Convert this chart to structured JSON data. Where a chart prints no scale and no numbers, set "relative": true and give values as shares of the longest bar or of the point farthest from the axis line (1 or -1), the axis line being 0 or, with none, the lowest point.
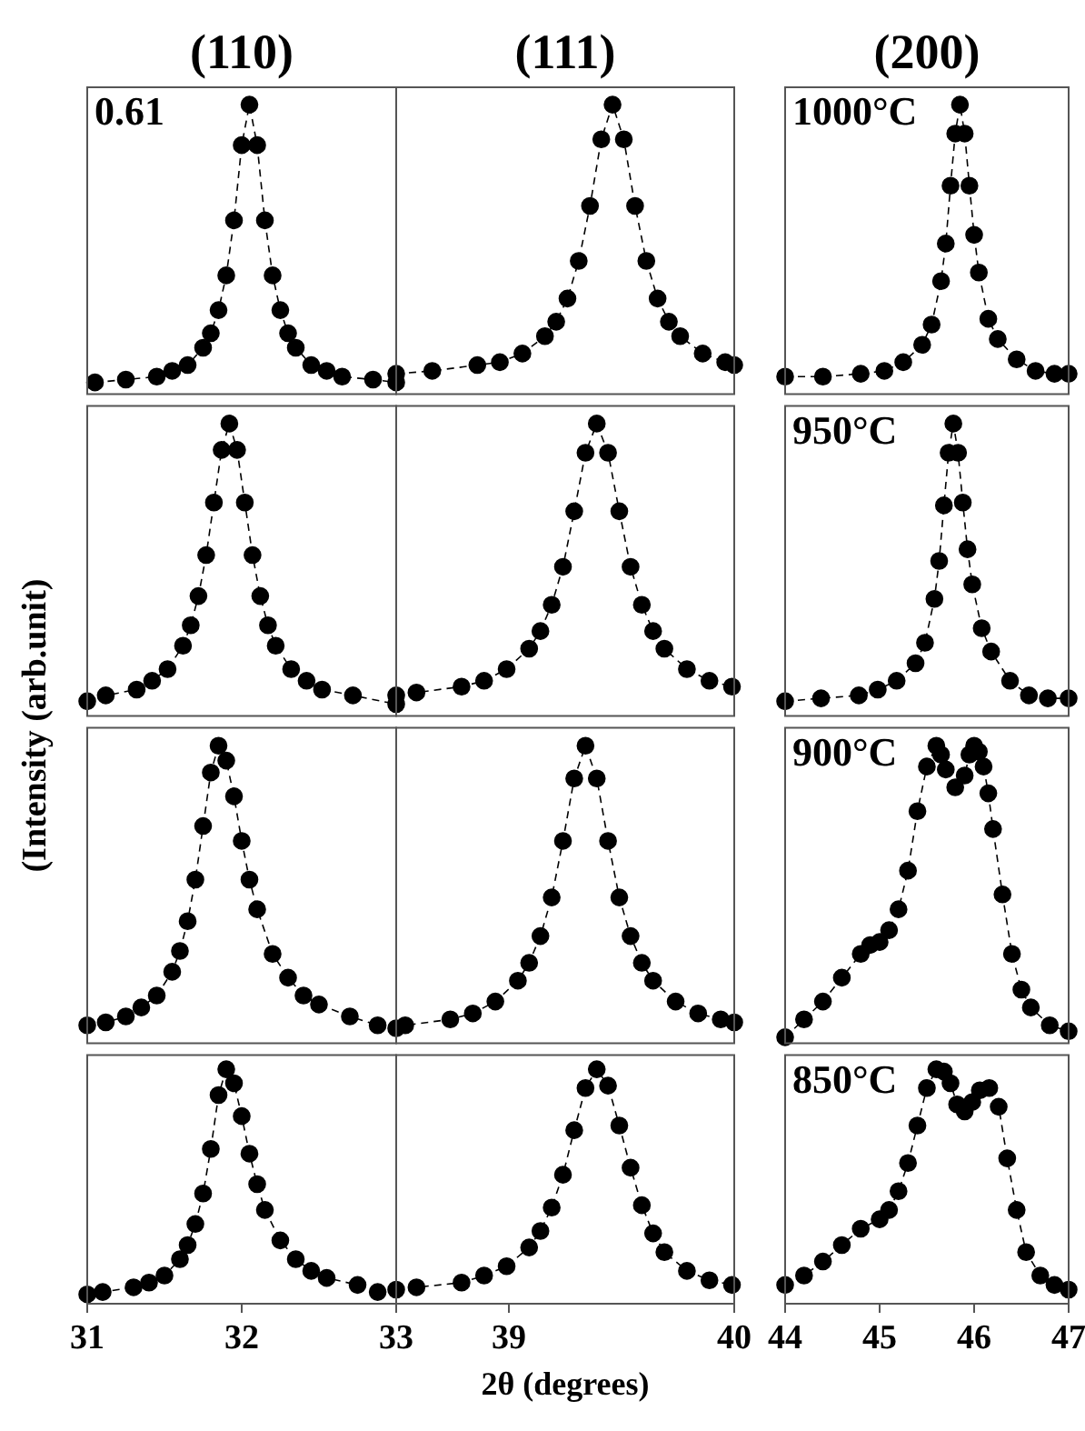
{
  "chart_data": [
    {
      "type": "line",
      "title": "(110)",
      "x": [
        31.05,
        31.25,
        31.45,
        31.55,
        31.65,
        31.75,
        31.8,
        31.85,
        31.9,
        31.95,
        32.0,
        32.05,
        32.1,
        32.15,
        32.2,
        32.25,
        32.3,
        32.35,
        32.45,
        32.55,
        32.65,
        32.85,
        33.0
      ],
      "values": [
        0.04,
        0.05,
        0.06,
        0.08,
        0.1,
        0.16,
        0.21,
        0.29,
        0.41,
        0.6,
        0.86,
        1,
        0.86,
        0.6,
        0.41,
        0.29,
        0.21,
        0.16,
        0.1,
        0.08,
        0.06,
        0.05,
        0.04
      ],
      "color": "#000000",
      "relative": true,
      "xlim": [
        31,
        33
      ],
      "xticks": [
        31,
        32,
        33
      ],
      "tick_labels": false,
      "marker": "circle",
      "line_style": "dashed",
      "annotations": [
        "0.61"
      ]
    },
    {
      "type": "line",
      "title": "(111)",
      "x": [
        38.5,
        38.66,
        38.86,
        38.96,
        39.06,
        39.16,
        39.21,
        39.26,
        39.31,
        39.36,
        39.41,
        39.46,
        39.51,
        39.56,
        39.61,
        39.66,
        39.71,
        39.76,
        39.86,
        39.96,
        40.0
      ],
      "values": [
        0.07,
        0.08,
        0.1,
        0.11,
        0.14,
        0.2,
        0.25,
        0.33,
        0.46,
        0.65,
        0.88,
        1,
        0.88,
        0.65,
        0.46,
        0.33,
        0.25,
        0.2,
        0.14,
        0.11,
        0.1
      ],
      "color": "#000000",
      "relative": true,
      "xlim": [
        38.5,
        40
      ],
      "xticks": [
        39,
        40
      ],
      "tick_labels": false,
      "marker": "circle",
      "line_style": "dashed"
    },
    {
      "type": "line",
      "title": "(200)",
      "x": [
        44.0,
        44.4,
        44.8,
        45.05,
        45.25,
        45.45,
        45.55,
        45.65,
        45.7,
        45.75,
        45.8,
        45.85,
        45.9,
        45.95,
        46.0,
        46.05,
        46.15,
        46.25,
        46.45,
        46.65,
        46.85,
        47.0
      ],
      "values": [
        0.06,
        0.06,
        0.07,
        0.08,
        0.11,
        0.17,
        0.24,
        0.39,
        0.52,
        0.72,
        0.9,
        1,
        0.9,
        0.72,
        0.55,
        0.42,
        0.26,
        0.19,
        0.12,
        0.08,
        0.07,
        0.07
      ],
      "color": "#000000",
      "relative": true,
      "xlim": [
        44,
        47
      ],
      "xticks": [
        44,
        45,
        46,
        47
      ],
      "tick_labels": false,
      "marker": "circle",
      "line_style": "dashed",
      "annotations": [
        "1000°C"
      ]
    },
    {
      "type": "line",
      "ylabel": "(Intensity (arb.unit)",
      "x": [
        31.0,
        31.12,
        31.32,
        31.42,
        31.52,
        31.62,
        31.67,
        31.72,
        31.77,
        31.82,
        31.87,
        31.92,
        31.97,
        32.02,
        32.07,
        32.12,
        32.17,
        32.22,
        32.32,
        32.42,
        32.52,
        32.72,
        33.0
      ],
      "values": [
        0.05,
        0.07,
        0.09,
        0.12,
        0.16,
        0.24,
        0.31,
        0.41,
        0.55,
        0.73,
        0.91,
        1,
        0.91,
        0.73,
        0.55,
        0.41,
        0.31,
        0.24,
        0.16,
        0.12,
        0.09,
        0.07,
        0.04
      ],
      "color": "#000000",
      "relative": true,
      "xlim": [
        31,
        33
      ],
      "xticks": [
        31,
        32,
        33
      ],
      "tick_labels": false,
      "marker": "circle",
      "line_style": "dashed"
    },
    {
      "type": "line",
      "x": [
        38.5,
        38.59,
        38.79,
        38.89,
        38.99,
        39.09,
        39.14,
        39.19,
        39.24,
        39.29,
        39.34,
        39.39,
        39.44,
        39.49,
        39.54,
        39.59,
        39.64,
        39.69,
        39.79,
        39.89,
        39.99
      ],
      "values": [
        0.07,
        0.08,
        0.1,
        0.12,
        0.16,
        0.23,
        0.29,
        0.38,
        0.51,
        0.7,
        0.9,
        1,
        0.9,
        0.7,
        0.51,
        0.38,
        0.29,
        0.23,
        0.16,
        0.12,
        0.1
      ],
      "color": "#000000",
      "relative": true,
      "xlim": [
        38.5,
        40
      ],
      "xticks": [
        39,
        40
      ],
      "tick_labels": false,
      "marker": "circle",
      "line_style": "dashed"
    },
    {
      "type": "line",
      "x": [
        44.0,
        44.38,
        44.78,
        44.98,
        45.18,
        45.38,
        45.48,
        45.58,
        45.63,
        45.68,
        45.73,
        45.78,
        45.83,
        45.88,
        45.93,
        45.98,
        46.08,
        46.18,
        46.38,
        46.58,
        46.78,
        47.0
      ],
      "values": [
        0.05,
        0.06,
        0.07,
        0.09,
        0.12,
        0.18,
        0.25,
        0.4,
        0.53,
        0.72,
        0.9,
        1,
        0.9,
        0.73,
        0.57,
        0.45,
        0.3,
        0.22,
        0.12,
        0.07,
        0.06,
        0.06
      ],
      "color": "#000000",
      "relative": true,
      "xlim": [
        44,
        47
      ],
      "xticks": [
        44,
        45,
        46,
        47
      ],
      "tick_labels": false,
      "marker": "circle",
      "line_style": "dashed",
      "annotations": [
        "950°C"
      ]
    },
    {
      "type": "line",
      "x": [
        31.0,
        31.12,
        31.25,
        31.35,
        31.45,
        31.55,
        31.6,
        31.65,
        31.7,
        31.75,
        31.8,
        31.85,
        31.9,
        31.95,
        32.0,
        32.05,
        32.1,
        32.2,
        32.3,
        32.4,
        32.5,
        32.7,
        32.88
      ],
      "values": [
        0.06,
        0.07,
        0.09,
        0.12,
        0.16,
        0.24,
        0.31,
        0.41,
        0.55,
        0.73,
        0.91,
        1,
        0.95,
        0.83,
        0.68,
        0.55,
        0.45,
        0.3,
        0.22,
        0.16,
        0.13,
        0.09,
        0.06
      ],
      "color": "#000000",
      "relative": true,
      "xlim": [
        31,
        33
      ],
      "xticks": [
        31,
        32,
        33
      ],
      "tick_labels": false,
      "marker": "circle",
      "line_style": "dashed"
    },
    {
      "type": "line",
      "x": [
        38.5,
        38.54,
        38.74,
        38.84,
        38.94,
        39.04,
        39.09,
        39.14,
        39.19,
        39.24,
        39.29,
        39.34,
        39.39,
        39.44,
        39.49,
        39.54,
        39.59,
        39.64,
        39.74,
        39.84,
        39.94,
        40.0
      ],
      "values": [
        0.05,
        0.06,
        0.08,
        0.1,
        0.14,
        0.21,
        0.27,
        0.36,
        0.49,
        0.68,
        0.89,
        1,
        0.89,
        0.68,
        0.49,
        0.36,
        0.27,
        0.21,
        0.14,
        0.1,
        0.08,
        0.07
      ],
      "color": "#000000",
      "relative": true,
      "xlim": [
        38.5,
        40
      ],
      "xticks": [
        39,
        40
      ],
      "tick_labels": false,
      "marker": "circle",
      "line_style": "dashed"
    },
    {
      "type": "line",
      "x": [
        44.0,
        44.2,
        44.4,
        44.6,
        44.8,
        44.9,
        45.0,
        45.1,
        45.2,
        45.3,
        45.4,
        45.5,
        45.6,
        45.65,
        45.7,
        45.8,
        45.9,
        45.95,
        46.0,
        46.05,
        46.1,
        46.15,
        46.2,
        46.3,
        46.4,
        46.5,
        46.6,
        46.8,
        47.0
      ],
      "values": [
        0.02,
        0.08,
        0.14,
        0.22,
        0.3,
        0.33,
        0.34,
        0.38,
        0.45,
        0.58,
        0.78,
        0.93,
        1,
        0.97,
        0.92,
        0.86,
        0.9,
        0.97,
        1,
        0.98,
        0.93,
        0.84,
        0.72,
        0.5,
        0.3,
        0.18,
        0.12,
        0.06,
        0.04
      ],
      "color": "#000000",
      "relative": true,
      "xlim": [
        44,
        47
      ],
      "xticks": [
        44,
        45,
        46,
        47
      ],
      "tick_labels": false,
      "marker": "circle",
      "line_style": "dashed",
      "annotations": [
        "900°C"
      ]
    },
    {
      "type": "line",
      "x": [
        31.0,
        31.1,
        31.3,
        31.4,
        31.5,
        31.6,
        31.65,
        31.7,
        31.75,
        31.8,
        31.85,
        31.9,
        31.95,
        32.0,
        32.05,
        32.1,
        32.15,
        32.25,
        32.35,
        32.45,
        32.55,
        32.75,
        32.88
      ],
      "values": [
        0.04,
        0.05,
        0.07,
        0.09,
        0.12,
        0.19,
        0.25,
        0.34,
        0.47,
        0.66,
        0.89,
        1,
        0.94,
        0.8,
        0.64,
        0.51,
        0.4,
        0.27,
        0.19,
        0.14,
        0.11,
        0.08,
        0.05
      ],
      "color": "#000000",
      "relative": true,
      "xlim": [
        31,
        33
      ],
      "xticks": [
        31,
        32,
        33
      ],
      "tick_labels": "x",
      "marker": "circle",
      "line_style": "dashed"
    },
    {
      "type": "line",
      "xlabel": "2θ (degrees)",
      "x": [
        38.5,
        38.59,
        38.79,
        38.89,
        38.99,
        39.09,
        39.14,
        39.19,
        39.24,
        39.29,
        39.34,
        39.39,
        39.44,
        39.49,
        39.54,
        39.59,
        39.64,
        39.69,
        39.79,
        39.89,
        39.99
      ],
      "values": [
        0.06,
        0.07,
        0.09,
        0.12,
        0.16,
        0.24,
        0.31,
        0.41,
        0.55,
        0.74,
        0.92,
        1,
        0.93,
        0.76,
        0.58,
        0.42,
        0.3,
        0.22,
        0.14,
        0.1,
        0.08
      ],
      "color": "#000000",
      "relative": true,
      "xlim": [
        38.5,
        40
      ],
      "xticks": [
        39,
        40
      ],
      "tick_labels": "x",
      "marker": "circle",
      "line_style": "dashed"
    },
    {
      "type": "line",
      "x": [
        44.0,
        44.2,
        44.4,
        44.6,
        44.8,
        45.0,
        45.1,
        45.2,
        45.3,
        45.4,
        45.5,
        45.6,
        45.68,
        45.75,
        45.82,
        45.9,
        45.98,
        46.06,
        46.16,
        46.26,
        46.35,
        46.45,
        46.55,
        46.7,
        46.85,
        47.0
      ],
      "values": [
        0.08,
        0.12,
        0.18,
        0.25,
        0.32,
        0.36,
        0.4,
        0.48,
        0.6,
        0.76,
        0.92,
        1,
        0.99,
        0.94,
        0.85,
        0.82,
        0.86,
        0.91,
        0.92,
        0.84,
        0.62,
        0.4,
        0.22,
        0.12,
        0.08,
        0.06
      ],
      "color": "#000000",
      "relative": true,
      "xlim": [
        44,
        47
      ],
      "xticks": [
        44,
        45,
        46,
        47
      ],
      "tick_labels": "x",
      "marker": "circle",
      "line_style": "dashed",
      "annotations": [
        "850°C"
      ]
    }
  ]
}
